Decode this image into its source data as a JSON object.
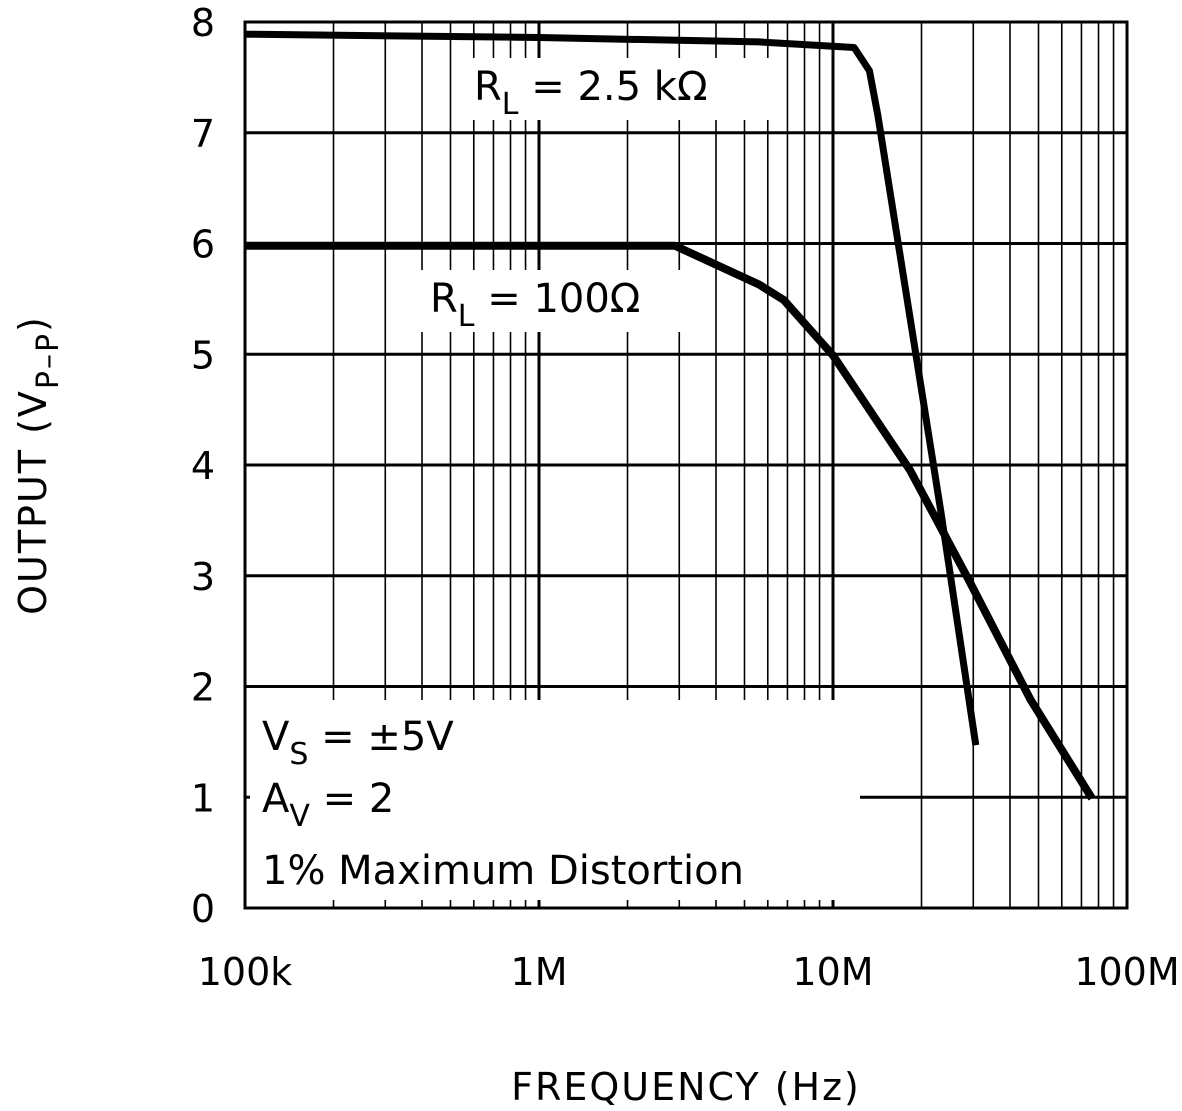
{
  "chart_data": {
    "type": "line",
    "xlabel": "FREQUENCY (Hz)",
    "ylabel": {
      "main": "OUTPUT (V",
      "sub": "P–P",
      "close": ")"
    },
    "x_scale": "log",
    "xlim": [
      100000,
      100000000
    ],
    "ylim": [
      0,
      8
    ],
    "grid": true,
    "x_ticks": [
      {
        "value": 100000,
        "label": "100k"
      },
      {
        "value": 1000000,
        "label": "1M"
      },
      {
        "value": 10000000,
        "label": "10M"
      },
      {
        "value": 100000000,
        "label": "100M"
      }
    ],
    "y_ticks": [
      {
        "value": 0,
        "label": "0"
      },
      {
        "value": 1,
        "label": "1"
      },
      {
        "value": 2,
        "label": "2"
      },
      {
        "value": 3,
        "label": "3"
      },
      {
        "value": 4,
        "label": "4"
      },
      {
        "value": 5,
        "label": "5"
      },
      {
        "value": 6,
        "label": "6"
      },
      {
        "value": 7,
        "label": "7"
      },
      {
        "value": 8,
        "label": "8"
      }
    ],
    "series": [
      {
        "name": {
          "main": "R",
          "sub": "L",
          "rest": " = 2.5 kΩ"
        },
        "x": [
          100000,
          1000000,
          5600000,
          11800000,
          13300000,
          14200000,
          23200000,
          30600000
        ],
        "y": [
          7.89,
          7.86,
          7.82,
          7.77,
          7.56,
          7.16,
          3.6,
          1.47
        ],
        "color": "#000000"
      },
      {
        "name": {
          "main": "R",
          "sub": "L",
          "rest": " = 100Ω"
        },
        "x": [
          100000,
          2900000,
          5600000,
          6800000,
          10000000,
          18300000,
          29000000,
          47000000,
          76000000
        ],
        "y": [
          5.98,
          5.98,
          5.63,
          5.49,
          4.99,
          3.95,
          2.96,
          1.88,
          0.99
        ],
        "color": "#000000"
      }
    ],
    "annotations": [
      {
        "main": "V",
        "sub": "S",
        "rest": " = ±5V"
      },
      {
        "main": "A",
        "sub": "V",
        "rest": " = 2"
      },
      {
        "text": "1% Maximum Distortion"
      }
    ]
  }
}
